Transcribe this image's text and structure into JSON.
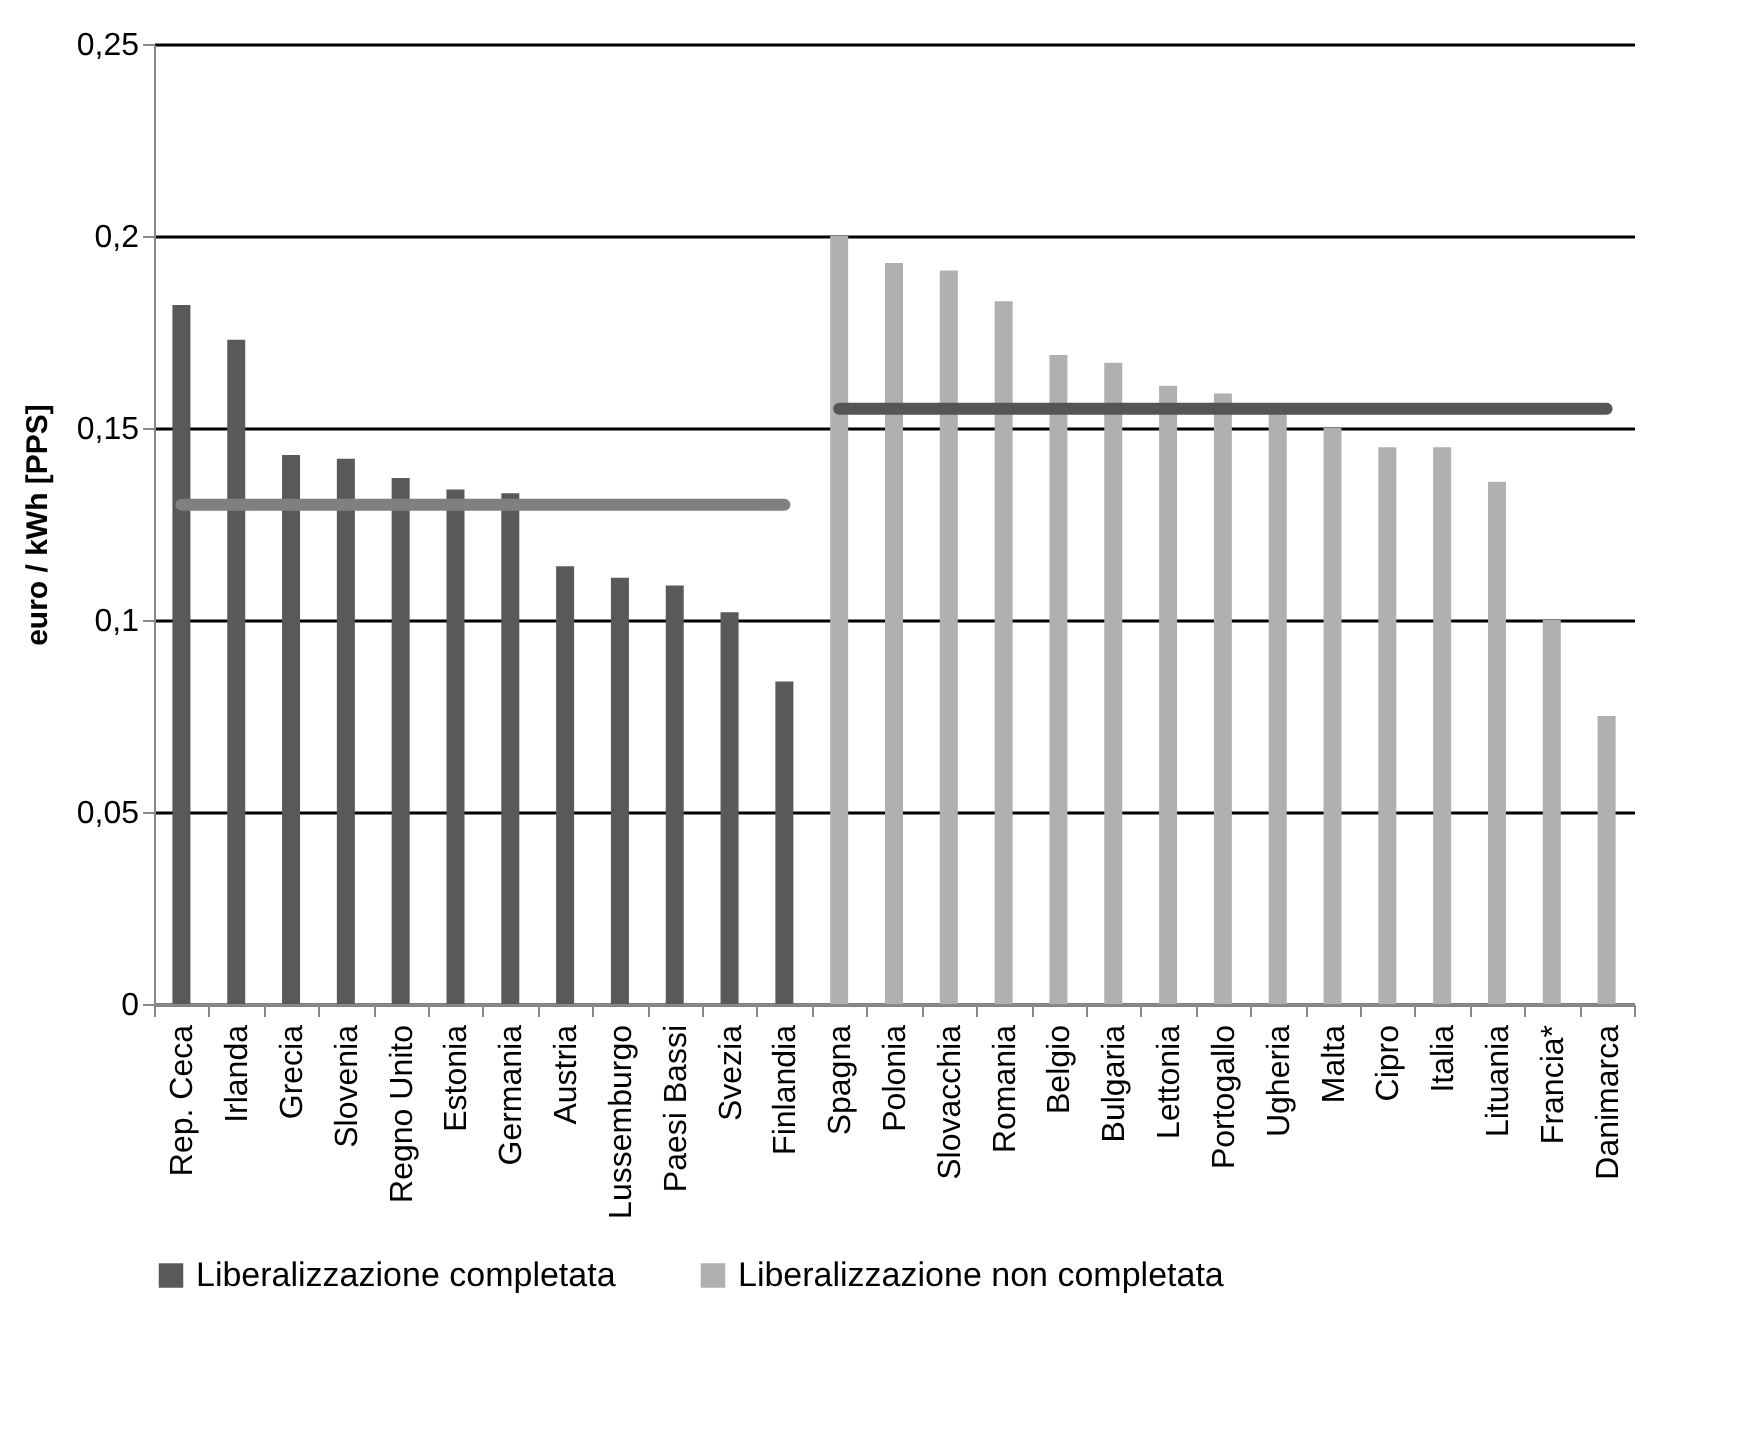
{
  "chart_data": {
    "type": "bar",
    "ylabel": "euro / kWh [PPS]",
    "categories": [
      "Rep. Ceca",
      "Irlanda",
      "Grecia",
      "Slovenia",
      "Regno Unito",
      "Estonia",
      "Germania",
      "Austria",
      "Lussemburgo",
      "Paesi Bassi",
      "Svezia",
      "Finlandia",
      "Spagna",
      "Polonia",
      "Slovacchia",
      "Romania",
      "Belgio",
      "Bulgaria",
      "Lettonia",
      "Portogallo",
      "Ugheria",
      "Malta",
      "Cipro",
      "Italia",
      "Lituania",
      "Francia*",
      "Danimarca"
    ],
    "series": [
      {
        "name": "Liberalizzazione completata",
        "color": "#595959",
        "values": [
          0.182,
          0.173,
          0.143,
          0.142,
          0.137,
          0.134,
          0.133,
          0.114,
          0.111,
          0.109,
          0.102,
          0.084,
          null,
          null,
          null,
          null,
          null,
          null,
          null,
          null,
          null,
          null,
          null,
          null,
          null,
          null,
          null
        ]
      },
      {
        "name": "Liberalizzazione non completata",
        "color": "#b0b0b0",
        "values": [
          null,
          null,
          null,
          null,
          null,
          null,
          null,
          null,
          null,
          null,
          null,
          null,
          0.2,
          0.193,
          0.191,
          0.183,
          0.169,
          0.167,
          0.161,
          0.159,
          0.154,
          0.15,
          0.145,
          0.145,
          0.136,
          0.1,
          0.075
        ]
      },
      {
        "type": "line",
        "color": "#808080",
        "values": [
          0.13,
          0.13,
          0.13,
          0.13,
          0.13,
          0.13,
          0.13,
          0.13,
          0.13,
          0.13,
          0.13,
          0.13,
          null,
          null,
          null,
          null,
          null,
          null,
          null,
          null,
          null,
          null,
          null,
          null,
          null,
          null,
          null
        ]
      },
      {
        "type": "line",
        "color": "#555555",
        "values": [
          null,
          null,
          null,
          null,
          null,
          null,
          null,
          null,
          null,
          null,
          null,
          null,
          0.155,
          0.155,
          0.155,
          0.155,
          0.155,
          0.155,
          0.155,
          0.155,
          0.155,
          0.155,
          0.155,
          0.155,
          0.155,
          0.155,
          0.155
        ]
      }
    ],
    "ylim": [
      0,
      0.25
    ],
    "yticks": [
      {
        "value": 0,
        "label": "0"
      },
      {
        "value": 0.05,
        "label": "0,05"
      },
      {
        "value": 0.1,
        "label": "0,1"
      },
      {
        "value": 0.15,
        "label": "0,15"
      },
      {
        "value": 0.2,
        "label": "0,2"
      },
      {
        "value": 0.25,
        "label": "0,25"
      }
    ],
    "grid": "y",
    "legend": "bottom"
  }
}
